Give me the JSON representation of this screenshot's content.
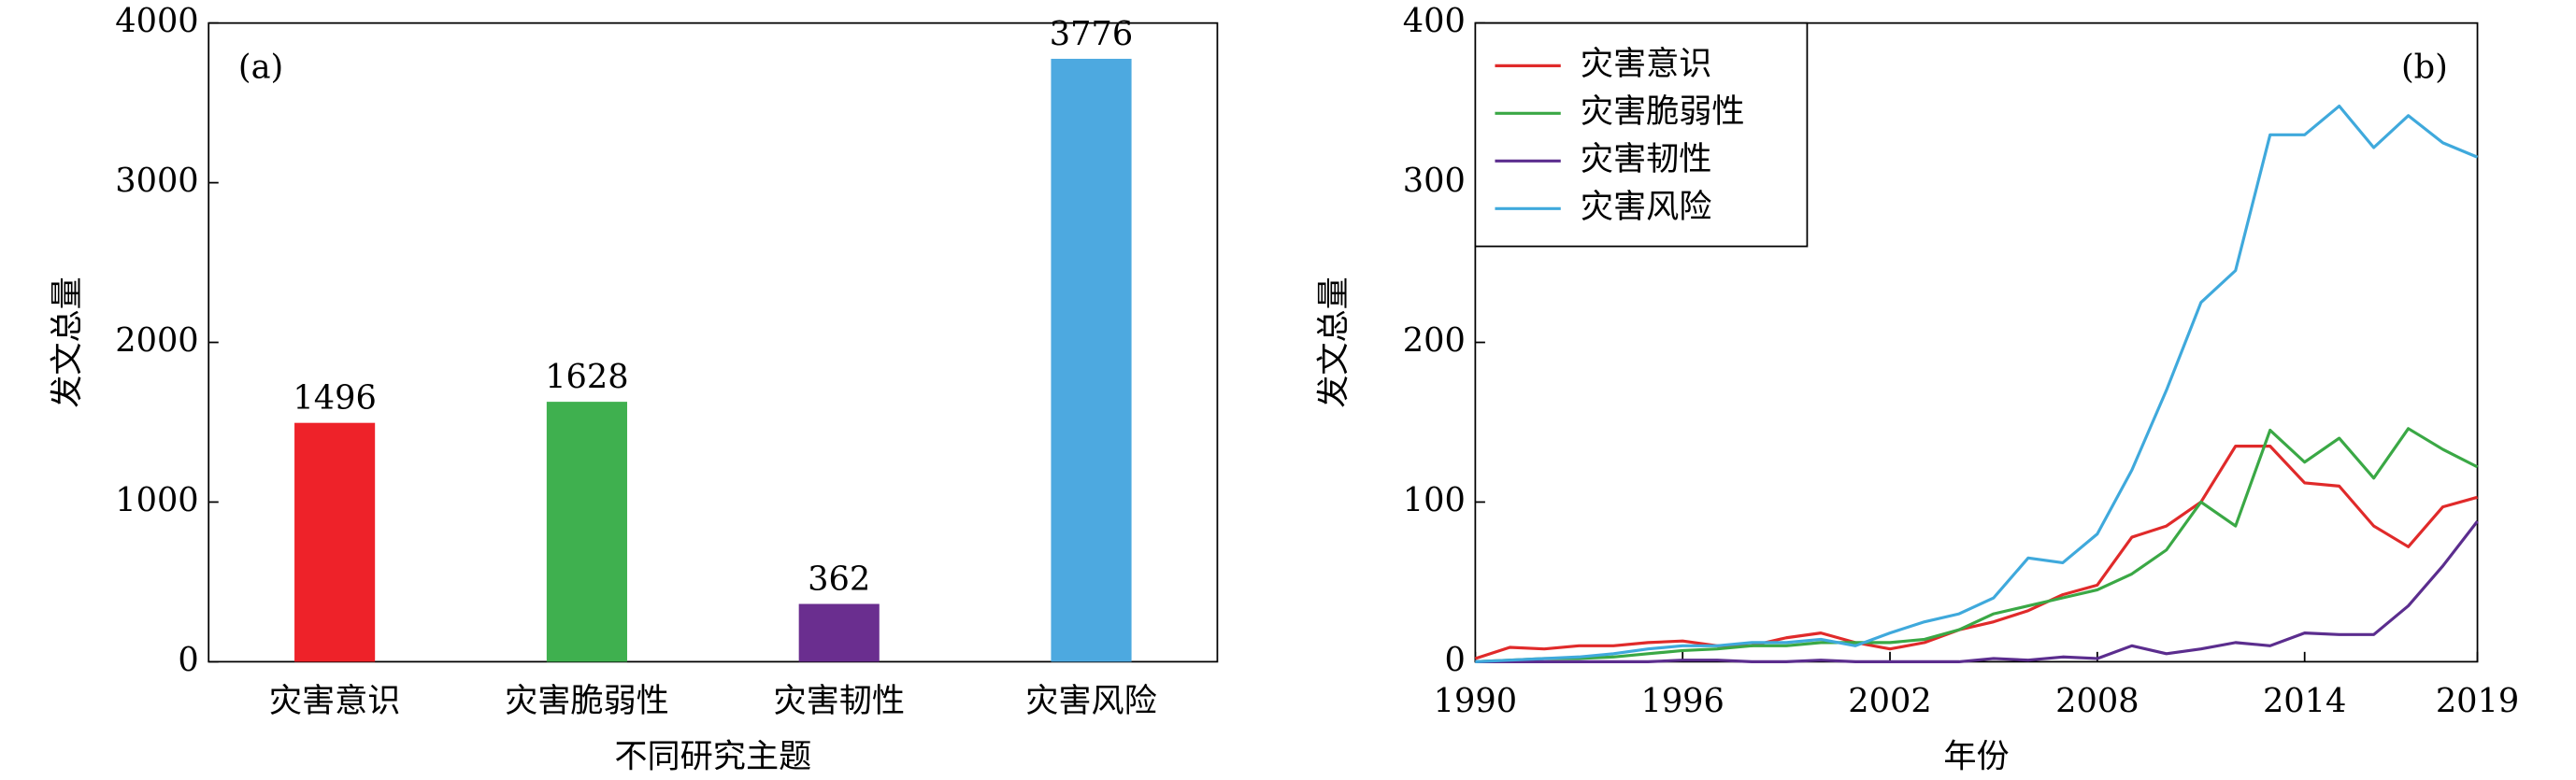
{
  "chart_data": [
    {
      "type": "bar",
      "annotation": "(a)",
      "x_label": "不同研究主题",
      "y_label": "发文总量",
      "categories": [
        "灾害意识",
        "灾害脆弱性",
        "灾害韧性",
        "灾害风险"
      ],
      "values": [
        1496,
        1628,
        362,
        3776
      ],
      "colors": [
        "#ee2229",
        "#3fb04f",
        "#6a2e8f",
        "#4da9e0"
      ],
      "ylim": [
        0,
        4000
      ],
      "yticks": [
        0,
        1000,
        2000,
        3000,
        4000
      ]
    },
    {
      "type": "line",
      "annotation": "(b)",
      "x_label": "年份",
      "y_label": "发文总量",
      "legend": "upper left",
      "x": [
        1990,
        1991,
        1992,
        1993,
        1994,
        1995,
        1996,
        1997,
        1998,
        1999,
        2000,
        2001,
        2002,
        2003,
        2004,
        2005,
        2006,
        2007,
        2008,
        2009,
        2010,
        2011,
        2012,
        2013,
        2014,
        2015,
        2016,
        2017,
        2018,
        2019
      ],
      "series": [
        {
          "name": "灾害意识",
          "color": "#e02a2a",
          "values": [
            2,
            9,
            8,
            10,
            10,
            12,
            13,
            10,
            10,
            15,
            18,
            12,
            8,
            12,
            20,
            25,
            32,
            42,
            48,
            78,
            85,
            100,
            135,
            135,
            112,
            110,
            85,
            72,
            97,
            103
          ]
        },
        {
          "name": "灾害脆弱性",
          "color": "#3aa845",
          "values": [
            0,
            1,
            2,
            2,
            3,
            5,
            7,
            8,
            10,
            10,
            12,
            12,
            12,
            14,
            20,
            30,
            35,
            40,
            45,
            55,
            70,
            100,
            85,
            145,
            125,
            140,
            115,
            146,
            133,
            122
          ]
        },
        {
          "name": "灾害韧性",
          "color": "#5b2d8e",
          "values": [
            0,
            0,
            0,
            0,
            0,
            0,
            1,
            1,
            0,
            0,
            1,
            0,
            0,
            0,
            0,
            2,
            1,
            3,
            2,
            10,
            5,
            8,
            12,
            10,
            18,
            17,
            17,
            35,
            60,
            88
          ]
        },
        {
          "name": "灾害风险",
          "color": "#3fa9dc",
          "values": [
            0,
            1,
            2,
            3,
            5,
            8,
            10,
            10,
            12,
            12,
            14,
            10,
            18,
            25,
            30,
            40,
            65,
            62,
            80,
            120,
            170,
            225,
            245,
            330,
            330,
            348,
            322,
            342,
            325,
            316
          ]
        }
      ],
      "xlim": [
        1990,
        2019
      ],
      "xticks": [
        1990,
        1996,
        2002,
        2008,
        2014,
        2019
      ],
      "ylim": [
        0,
        400
      ],
      "yticks": [
        0,
        100,
        200,
        300,
        400
      ]
    }
  ]
}
